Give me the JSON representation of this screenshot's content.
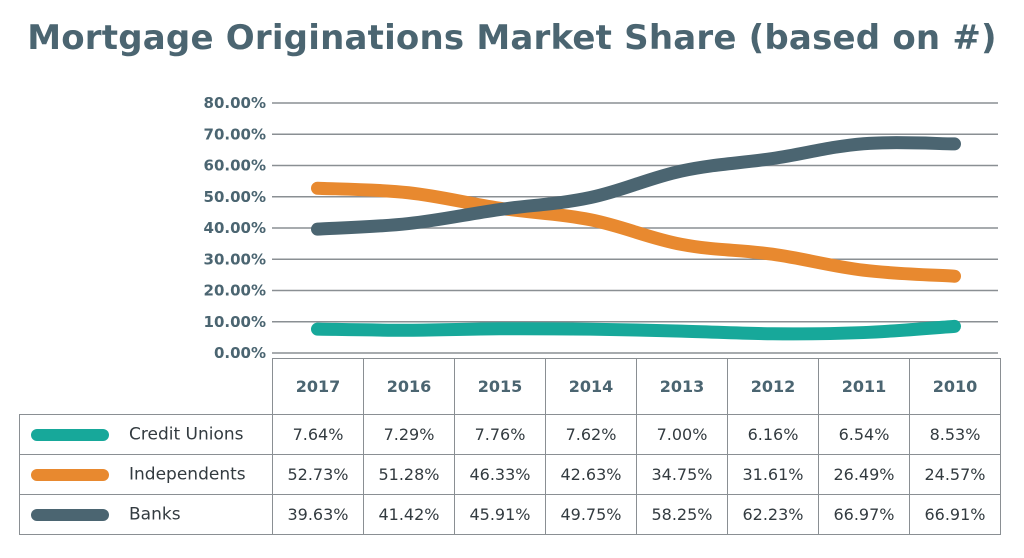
{
  "chart_data": {
    "type": "line",
    "title": "Mortgage Originations Market Share (based on #)",
    "categories": [
      "2017",
      "2016",
      "2015",
      "2014",
      "2013",
      "2012",
      "2011",
      "2010"
    ],
    "yticks": [
      "80.00%",
      "70.00%",
      "60.00%",
      "50.00%",
      "40.00%",
      "30.00%",
      "20.00%",
      "10.00%",
      "0.00%"
    ],
    "ylim": [
      0,
      80
    ],
    "grid": true,
    "series": [
      {
        "name": "Credit Unions",
        "color": "#17a89a",
        "values": [
          7.64,
          7.29,
          7.76,
          7.62,
          7.0,
          6.16,
          6.54,
          8.53
        ],
        "labels": [
          "7.64%",
          "7.29%",
          "7.76%",
          "7.62%",
          "7.00%",
          "6.16%",
          "6.54%",
          "8.53%"
        ]
      },
      {
        "name": "Independents",
        "color": "#e8892f",
        "values": [
          52.73,
          51.28,
          46.33,
          42.63,
          34.75,
          31.61,
          26.49,
          24.57
        ],
        "labels": [
          "52.73%",
          "51.28%",
          "46.33%",
          "42.63%",
          "34.75%",
          "31.61%",
          "26.49%",
          "24.57%"
        ]
      },
      {
        "name": "Banks",
        "color": "#4b6571",
        "values": [
          39.63,
          41.42,
          45.91,
          49.75,
          58.25,
          62.23,
          66.97,
          66.91
        ],
        "labels": [
          "39.63%",
          "41.42%",
          "45.91%",
          "49.75%",
          "58.25%",
          "62.23%",
          "66.97%",
          "66.91%"
        ]
      }
    ]
  }
}
